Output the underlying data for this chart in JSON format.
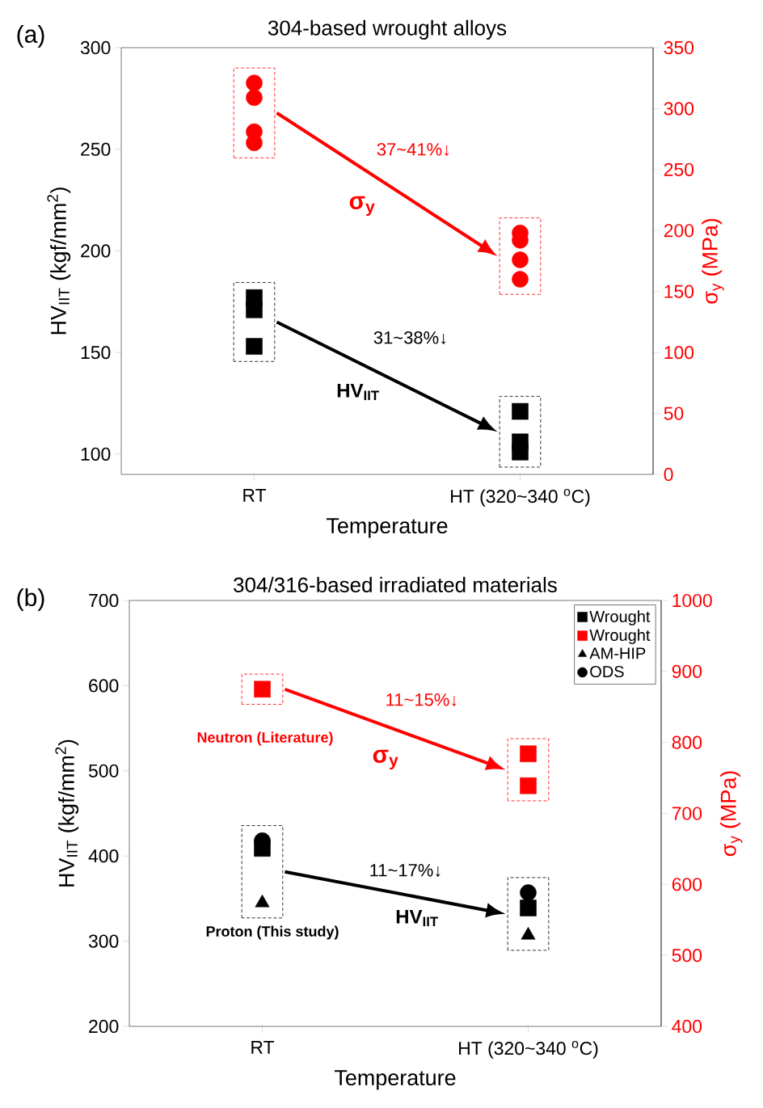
{
  "chart_data": [
    {
      "type": "scatter",
      "title": "304-based wrought alloys",
      "xlabel": "Temperature",
      "ylabel": "HV$_{IIT}$ (kgf/mm$^{2}$)",
      "y2label": "σ$_{y}$ (MPa)",
      "categories": [
        "RT",
        "HT (320~340 $^{o}$C)"
      ],
      "ylim": [
        90,
        300
      ],
      "yticks": [
        100,
        150,
        200,
        250,
        300
      ],
      "y2lim": [
        0,
        350
      ],
      "y2ticks": [
        0,
        50,
        100,
        150,
        200,
        250,
        300,
        350
      ],
      "annotations": [
        "(a)",
        "37~41%↓",
        "σ$_{y}$",
        "31~38%↓",
        "HV$_{IIT}$"
      ],
      "series": [
        {
          "color": "#000000",
          "marker": "square",
          "values": [
            177,
            121
          ]
        },
        {
          "color": "#000000",
          "marker": "square",
          "values": [
            171,
            106
          ]
        },
        {
          "color": "#000000",
          "marker": "square",
          "values": [
            153,
            101
          ]
        },
        {
          "color": "#ff0000",
          "marker": "circle",
          "axis": "y2",
          "values": [
            321,
            198
          ]
        },
        {
          "color": "#ff0000",
          "marker": "circle",
          "axis": "y2",
          "values": [
            309,
            192
          ]
        },
        {
          "color": "#ff0000",
          "marker": "circle",
          "axis": "y2",
          "values": [
            281,
            176
          ]
        },
        {
          "color": "#ff0000",
          "marker": "circle",
          "axis": "y2",
          "values": [
            272,
            160
          ]
        }
      ]
    },
    {
      "type": "scatter",
      "title": "304/316-based irradiated materials",
      "xlabel": "Temperature",
      "ylabel": "HV$_{IIT}$ (kgf/mm$^{2}$)",
      "y2label": "σ$_{y}$ (MPa)",
      "categories": [
        "RT",
        "HT (320~340 $^{o}$C)"
      ],
      "ylim": [
        200,
        700
      ],
      "yticks": [
        200,
        300,
        400,
        500,
        600,
        700
      ],
      "y2lim": [
        400,
        1000
      ],
      "y2ticks": [
        400,
        500,
        600,
        700,
        800,
        900,
        1000
      ],
      "legend": "top right",
      "annotations": [
        "(b)",
        "11~15%↓",
        "σ$_{y}$",
        "Neutron (Literature)",
        "11~17%↓",
        "HV$_{IIT}$",
        "Proton (This study)"
      ],
      "series": [
        {
          "name": "Wrought",
          "color": "#000000",
          "marker": "square",
          "values": [
            409,
            339
          ]
        },
        {
          "name": "Wrought",
          "color": "#ff0000",
          "marker": "square",
          "axis": "y2",
          "values": [
            875,
            784
          ]
        },
        {
          "color": "#ff0000",
          "marker": "square",
          "axis": "y2",
          "values": [
            null,
            739
          ]
        },
        {
          "name": "AM-HIP",
          "color": "#000000",
          "marker": "triangle",
          "values": [
            345,
            307
          ]
        },
        {
          "name": "ODS",
          "color": "#000000",
          "marker": "circle",
          "values": [
            418,
            357
          ]
        }
      ]
    }
  ]
}
